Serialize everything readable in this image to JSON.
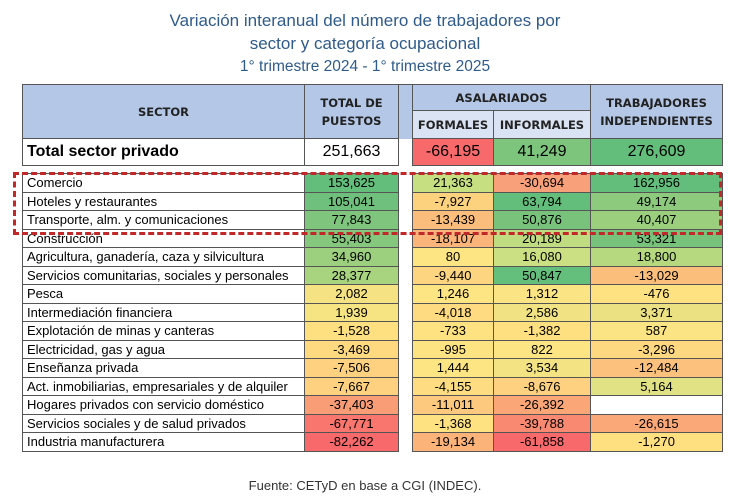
{
  "title": {
    "line1": "Variación interanual del número de trabajadores por",
    "line2": "sector y categoría ocupacional",
    "line3": "1° trimestre 2024 - 1° trimestre 2025"
  },
  "headers": {
    "sector": "SECTOR",
    "total": "TOTAL DE PUESTOS",
    "asalariados": "ASALARIADOS",
    "formales": "FORMALES",
    "informales": "INFORMALES",
    "independientes": "TRABAJADORES INDEPENDIENTES"
  },
  "total_row": {
    "name": "Total sector privado",
    "values": [
      "251,663",
      "-66,195",
      "41,249",
      "276,609"
    ],
    "colors": [
      "#ffffff",
      "#f8696b",
      "#7dc47c",
      "#63be7b"
    ]
  },
  "rows": [
    {
      "name": "Comercio",
      "values": [
        "153,625",
        "21,363",
        "-30,694",
        "162,956"
      ],
      "colors": [
        "#63be7b",
        "#c6df81",
        "#f8a07a",
        "#63be7b"
      ]
    },
    {
      "name": "Hoteles y restaurantes",
      "values": [
        "105,041",
        "-7,927",
        "63,794",
        "49,174"
      ],
      "colors": [
        "#6ec07c",
        "#fdd27f",
        "#63be7b",
        "#8dca7e"
      ]
    },
    {
      "name": "Transporte, alm. y comunicaciones",
      "values": [
        "77,843",
        "-13,439",
        "50,876",
        "40,407"
      ],
      "colors": [
        "#7fc57d",
        "#fbbd7b",
        "#78c27c",
        "#9bcf7d"
      ]
    },
    {
      "name": "Construcción",
      "values": [
        "55,403",
        "-18,107",
        "20,189",
        "53,321"
      ],
      "colors": [
        "#84c77d",
        "#fbb57a",
        "#c0dc81",
        "#78c37c"
      ]
    },
    {
      "name": "Agricultura, ganadería, caza y silvicultura",
      "values": [
        "34,960",
        "80",
        "16,080",
        "18,800"
      ],
      "colors": [
        "#9ccf7e",
        "#fee583",
        "#cbe082",
        "#b6d980"
      ]
    },
    {
      "name": "Servicios comunitarias, sociales y personales",
      "values": [
        "28,377",
        "-9,440",
        "50,847",
        "-13,029"
      ],
      "colors": [
        "#a8d47f",
        "#fdd47f",
        "#65bf7c",
        "#fcbf7b"
      ]
    },
    {
      "name": "Pesca",
      "values": [
        "2,082",
        "1,246",
        "1,312",
        "-476"
      ],
      "colors": [
        "#f5e383",
        "#fee583",
        "#fbe483",
        "#fee282"
      ]
    },
    {
      "name": "Intermediación financiera",
      "values": [
        "1,939",
        "-4,018",
        "2,586",
        "3,371"
      ],
      "colors": [
        "#f6e483",
        "#fedb81",
        "#f1e383",
        "#ebe182"
      ]
    },
    {
      "name": "Explotación de minas y canteras",
      "values": [
        "-1,528",
        "-733",
        "-1,382",
        "587"
      ],
      "colors": [
        "#fee081",
        "#fee282",
        "#fee081",
        "#fbe483"
      ]
    },
    {
      "name": "Electricidad, gas y agua",
      "values": [
        "-3,469",
        "-995",
        "822",
        "-3,296"
      ],
      "colors": [
        "#fed980",
        "#fee382",
        "#fde583",
        "#fdd880"
      ]
    },
    {
      "name": "Enseñanza privada",
      "values": [
        "-7,506",
        "1,444",
        "3,534",
        "-12,484"
      ],
      "colors": [
        "#fdd17f",
        "#fee583",
        "#f3e383",
        "#fcc17c"
      ]
    },
    {
      "name": "Act. inmobiliarias, empresariales y de alquiler",
      "values": [
        "-7,667",
        "-4,155",
        "-8,676",
        "5,164"
      ],
      "colors": [
        "#fdd17f",
        "#fedc81",
        "#fdd17f",
        "#e0e283"
      ]
    },
    {
      "name": "Hogares privados con servicio doméstico",
      "values": [
        "-37,403",
        "-11,011",
        "-26,392",
        ""
      ],
      "colors": [
        "#f99d76",
        "#fdc97e",
        "#faa677",
        "#ffffff"
      ]
    },
    {
      "name": "Servicios sociales y de salud privados",
      "values": [
        "-67,771",
        "-1,368",
        "-39,788",
        "-26,615"
      ],
      "colors": [
        "#f8766d",
        "#fee282",
        "#f98a71",
        "#faa877"
      ]
    },
    {
      "name": "Industria manufacturera",
      "values": [
        "-82,262",
        "-19,134",
        "-61,858",
        "-1,270"
      ],
      "colors": [
        "#f8696b",
        "#fbb37a",
        "#f8696b",
        "#fee081"
      ]
    }
  ],
  "footer": "Fuente: CETyD en base a CGI (INDEC)."
}
